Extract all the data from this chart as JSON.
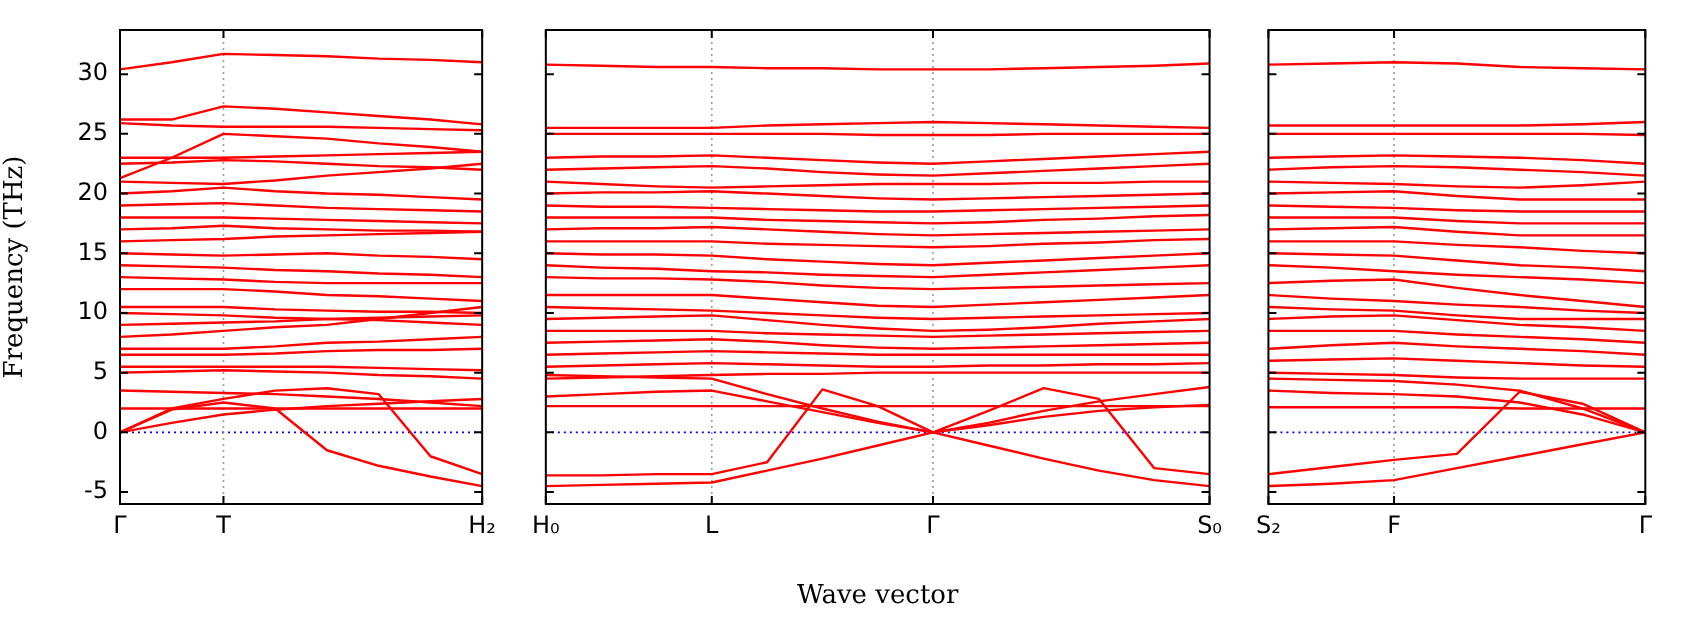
{
  "chart_data": [
    {
      "type": "line",
      "ylabel": "Frequency (THz)",
      "categories": [
        "Γ",
        null,
        "T",
        null,
        null,
        null,
        null,
        "H₂"
      ],
      "ylim": [
        -6,
        33.7
      ],
      "yticks": [
        -5,
        0,
        5,
        10,
        15,
        20,
        25,
        30
      ],
      "ref_lines": [
        {
          "axis": "y",
          "value": 0,
          "color": "#0000ff",
          "line_style": "dotted"
        },
        {
          "axis": "x",
          "value": "T",
          "color": "#999999",
          "line_style": "dotted"
        }
      ],
      "series": [
        {
          "color": "#ff0000",
          "values": [
            30.4,
            31.0,
            31.7,
            31.6,
            31.5,
            31.3,
            31.2,
            31.0
          ]
        },
        {
          "color": "#ff0000",
          "values": [
            26.2,
            26.2,
            27.3,
            27.1,
            26.8,
            26.5,
            26.2,
            25.8
          ]
        },
        {
          "color": "#ff0000",
          "values": [
            25.9,
            25.7,
            25.6,
            25.6,
            25.6,
            25.5,
            25.4,
            25.3
          ]
        },
        {
          "color": "#ff0000",
          "values": [
            21.3,
            23.0,
            25.0,
            24.8,
            24.6,
            24.2,
            23.9,
            23.5
          ]
        },
        {
          "color": "#ff0000",
          "values": [
            23,
            23,
            23,
            23.1,
            23.2,
            23.3,
            23.4,
            23.5
          ]
        },
        {
          "color": "#ff0000",
          "values": [
            22.5,
            22.6,
            22.8,
            22.7,
            22.5,
            22.3,
            22.2,
            22
          ]
        },
        {
          "color": "#ff0000",
          "values": [
            21,
            20.9,
            20.8,
            21.1,
            21.5,
            21.8,
            22.1,
            22.5
          ]
        },
        {
          "color": "#ff0000",
          "values": [
            20,
            20.2,
            20.5,
            20.2,
            20,
            19.9,
            19.7,
            19.5
          ]
        },
        {
          "color": "#ff0000",
          "values": [
            19,
            19.1,
            19.2,
            19,
            18.8,
            18.7,
            18.6,
            18.5
          ]
        },
        {
          "color": "#ff0000",
          "values": [
            18,
            18,
            18,
            17.9,
            17.8,
            17.7,
            17.6,
            17.5
          ]
        },
        {
          "color": "#ff0000",
          "values": [
            17,
            17.1,
            17.3,
            17.1,
            17,
            16.9,
            16.9,
            16.8
          ]
        },
        {
          "color": "#ff0000",
          "values": [
            16,
            16.1,
            16.2,
            16.4,
            16.5,
            16.6,
            16.7,
            16.8
          ]
        },
        {
          "color": "#ff0000",
          "values": [
            15,
            14.9,
            14.8,
            14.9,
            15,
            14.8,
            14.7,
            14.5
          ]
        },
        {
          "color": "#ff0000",
          "values": [
            14,
            13.9,
            13.8,
            13.6,
            13.5,
            13.3,
            13.2,
            13
          ]
        },
        {
          "color": "#ff0000",
          "values": [
            13,
            12.9,
            12.8,
            12.6,
            12.5,
            12.5,
            12.5,
            12.5
          ]
        },
        {
          "color": "#ff0000",
          "values": [
            12,
            12,
            12,
            11.8,
            11.5,
            11.4,
            11.2,
            11
          ]
        },
        {
          "color": "#ff0000",
          "values": [
            10.5,
            10.5,
            10.5,
            10.3,
            10.2,
            10.1,
            10.1,
            10
          ]
        },
        {
          "color": "#ff0000",
          "values": [
            10,
            9.9,
            9.8,
            9.6,
            9.5,
            9.4,
            9.2,
            9
          ]
        },
        {
          "color": "#ff0000",
          "values": [
            9,
            9.1,
            9.2,
            9.3,
            9.5,
            9.6,
            9.7,
            9.8
          ]
        },
        {
          "color": "#ff0000",
          "values": [
            8,
            8.2,
            8.5,
            8.8,
            9,
            9.5,
            10,
            10.5
          ]
        },
        {
          "color": "#ff0000",
          "values": [
            7,
            7,
            7,
            7.2,
            7.5,
            7.6,
            7.8,
            8
          ]
        },
        {
          "color": "#ff0000",
          "values": [
            6.5,
            6.5,
            6.5,
            6.6,
            6.8,
            6.9,
            6.9,
            7
          ]
        },
        {
          "color": "#ff0000",
          "values": [
            5.5,
            5.5,
            5.5,
            5.5,
            5.5,
            5.4,
            5.3,
            5.2
          ]
        },
        {
          "color": "#ff0000",
          "values": [
            5,
            5.1,
            5.2,
            5.1,
            5,
            4.8,
            4.7,
            4.5
          ]
        },
        {
          "color": "#ff0000",
          "values": [
            3.5,
            3.4,
            3.3,
            3.2,
            3.0,
            2.8,
            2.5,
            2.2
          ]
        },
        {
          "color": "#ff0000",
          "values": [
            2,
            2,
            2,
            2,
            2,
            2,
            2,
            2
          ]
        },
        {
          "color": "#ff0000",
          "values": [
            0,
            0.8,
            1.5,
            1.9,
            2.2,
            2.4,
            2.6,
            2.8
          ]
        },
        {
          "color": "#ff0000",
          "values": [
            0,
            1.9,
            2.5,
            2.0,
            -1.5,
            -2.8,
            -3.7,
            -4.5
          ]
        },
        {
          "color": "#ff0000",
          "values": [
            0,
            2.0,
            2.8,
            3.5,
            3.7,
            3.2,
            -2.0,
            -3.5
          ]
        }
      ]
    },
    {
      "type": "line",
      "xlabel": "Wave vector",
      "categories": [
        "H₀",
        null,
        null,
        "L",
        null,
        null,
        null,
        "Γ",
        null,
        null,
        null,
        null,
        "S₀"
      ],
      "ylim": [
        -6,
        33.7
      ],
      "yticks": [
        -5,
        0,
        5,
        10,
        15,
        20,
        25,
        30
      ],
      "tick_labels": "x",
      "ref_lines": [
        {
          "axis": "y",
          "value": 0,
          "color": "#0000ff",
          "line_style": "dotted"
        },
        {
          "axis": "x",
          "value": "L",
          "color": "#999999",
          "line_style": "dotted"
        },
        {
          "axis": "x",
          "value": "Γ",
          "color": "#999999",
          "line_style": "dotted"
        }
      ],
      "series": [
        {
          "color": "#ff0000",
          "values": [
            30.8,
            30.7,
            30.6,
            30.6,
            30.5,
            30.5,
            30.4,
            30.4,
            30.4,
            30.5,
            30.6,
            30.7,
            30.9
          ]
        },
        {
          "color": "#ff0000",
          "values": [
            25.5,
            25.5,
            25.5,
            25.5,
            25.7,
            25.8,
            25.9,
            26,
            25.9,
            25.8,
            25.7,
            25.6,
            25.5
          ]
        },
        {
          "color": "#ff0000",
          "values": [
            25,
            25,
            25,
            25,
            25,
            25,
            24.9,
            24.9,
            24.9,
            25,
            25,
            25,
            25
          ]
        },
        {
          "color": "#ff0000",
          "values": [
            23,
            23.1,
            23.1,
            23.2,
            23,
            22.8,
            22.6,
            22.5,
            22.7,
            22.9,
            23.1,
            23.3,
            23.5
          ]
        },
        {
          "color": "#ff0000",
          "values": [
            22,
            22.1,
            22.2,
            22.3,
            22.1,
            21.8,
            21.6,
            21.5,
            21.7,
            21.9,
            22.1,
            22.3,
            22.5
          ]
        },
        {
          "color": "#ff0000",
          "values": [
            21,
            20.8,
            20.6,
            20.5,
            20.6,
            20.7,
            20.8,
            20.8,
            20.8,
            20.9,
            20.9,
            21,
            21
          ]
        },
        {
          "color": "#ff0000",
          "values": [
            20,
            20.1,
            20.1,
            20.2,
            20,
            19.8,
            19.6,
            19.5,
            19.6,
            19.7,
            19.8,
            19.9,
            20
          ]
        },
        {
          "color": "#ff0000",
          "values": [
            19,
            18.9,
            18.9,
            18.8,
            18.7,
            18.6,
            18.5,
            18.5,
            18.6,
            18.7,
            18.8,
            18.9,
            19
          ]
        },
        {
          "color": "#ff0000",
          "values": [
            18,
            18,
            18,
            18,
            17.8,
            17.7,
            17.6,
            17.5,
            17.6,
            17.8,
            17.9,
            18.1,
            18.2
          ]
        },
        {
          "color": "#ff0000",
          "values": [
            17,
            17.1,
            17.1,
            17.2,
            17,
            16.8,
            16.6,
            16.5,
            16.6,
            16.7,
            16.8,
            16.9,
            17
          ]
        },
        {
          "color": "#ff0000",
          "values": [
            16,
            16,
            16,
            16,
            15.8,
            15.7,
            15.6,
            15.5,
            15.6,
            15.8,
            15.9,
            16.1,
            16.2
          ]
        },
        {
          "color": "#ff0000",
          "values": [
            15,
            14.9,
            14.9,
            14.8,
            14.5,
            14.3,
            14.1,
            14,
            14.2,
            14.4,
            14.6,
            14.8,
            15
          ]
        },
        {
          "color": "#ff0000",
          "values": [
            14,
            13.8,
            13.7,
            13.5,
            13.4,
            13.2,
            13.1,
            13,
            13.2,
            13.4,
            13.6,
            13.8,
            14
          ]
        },
        {
          "color": "#ff0000",
          "values": [
            13,
            12.9,
            12.9,
            12.8,
            12.6,
            12.3,
            12.1,
            12,
            12.1,
            12.2,
            12.3,
            12.4,
            12.5
          ]
        },
        {
          "color": "#ff0000",
          "values": [
            11.5,
            11.5,
            11.5,
            11.5,
            11.2,
            10.9,
            10.6,
            10.5,
            10.7,
            10.9,
            11.1,
            11.3,
            11.5
          ]
        },
        {
          "color": "#ff0000",
          "values": [
            10.5,
            10.4,
            10.3,
            10.2,
            10,
            9.8,
            9.6,
            9.5,
            9.6,
            9.7,
            9.8,
            9.9,
            10
          ]
        },
        {
          "color": "#ff0000",
          "values": [
            9.5,
            9.6,
            9.7,
            9.8,
            9.4,
            9,
            8.7,
            8.5,
            8.6,
            8.8,
            9.1,
            9.3,
            9.5
          ]
        },
        {
          "color": "#ff0000",
          "values": [
            8.5,
            8.5,
            8.5,
            8.5,
            8.3,
            8.2,
            8.1,
            8,
            8.1,
            8.2,
            8.3,
            8.4,
            8.5
          ]
        },
        {
          "color": "#ff0000",
          "values": [
            7.5,
            7.6,
            7.7,
            7.8,
            7.6,
            7.3,
            7.1,
            7,
            7.1,
            7.2,
            7.3,
            7.4,
            7.5
          ]
        },
        {
          "color": "#ff0000",
          "values": [
            6.5,
            6.6,
            6.7,
            6.8,
            6.7,
            6.6,
            6.5,
            6.5,
            6.5,
            6.5,
            6.5,
            6.5,
            6.5
          ]
        },
        {
          "color": "#ff0000",
          "values": [
            5.5,
            5.6,
            5.7,
            5.8,
            5.7,
            5.6,
            5.5,
            5.5,
            5.6,
            5.6,
            5.7,
            5.7,
            5.8
          ]
        },
        {
          "color": "#ff0000",
          "values": [
            4.5,
            4.6,
            4.7,
            4.8,
            4.9,
            4.9,
            5,
            5,
            5,
            5,
            5,
            5,
            5
          ]
        },
        {
          "color": "#ff0000",
          "values": [
            2.2,
            2.2,
            2.2,
            2.2,
            2.2,
            2.2,
            2.2,
            2.2,
            2.2,
            2.2,
            2.2,
            2.2,
            2.2
          ]
        },
        {
          "color": "#ff0000",
          "values": [
            4.8,
            4.7,
            4.6,
            4.5,
            3.2,
            2.0,
            0.9,
            0,
            0.8,
            1.8,
            2.6,
            3.2,
            3.8
          ]
        },
        {
          "color": "#ff0000",
          "values": [
            3,
            3.2,
            3.4,
            3.5,
            2.6,
            1.7,
            0.8,
            0,
            0.6,
            1.3,
            1.8,
            2.1,
            2.3
          ]
        },
        {
          "color": "#ff0000",
          "values": [
            -3.6,
            -3.6,
            -3.5,
            -3.5,
            -2.5,
            3.6,
            2.2,
            0,
            1.8,
            3.7,
            2.8,
            -3.0,
            -3.5
          ]
        },
        {
          "color": "#ff0000",
          "values": [
            -4.5,
            -4.4,
            -4.3,
            -4.2,
            -3.2,
            -2.2,
            -1.1,
            0,
            -1.1,
            -2.2,
            -3.2,
            -4.0,
            -4.5
          ]
        }
      ]
    },
    {
      "type": "line",
      "categories": [
        "S₂",
        null,
        "F",
        null,
        null,
        null,
        "Γ"
      ],
      "ylim": [
        -6,
        33.7
      ],
      "yticks": [
        -5,
        0,
        5,
        10,
        15,
        20,
        25,
        30
      ],
      "tick_labels": "x",
      "ref_lines": [
        {
          "axis": "y",
          "value": 0,
          "color": "#0000ff",
          "line_style": "dotted"
        },
        {
          "axis": "x",
          "value": "F",
          "color": "#999999",
          "line_style": "dotted"
        }
      ],
      "series": [
        {
          "color": "#ff0000",
          "values": [
            30.8,
            30.9,
            31,
            30.9,
            30.6,
            30.5,
            30.4
          ]
        },
        {
          "color": "#ff0000",
          "values": [
            25.7,
            25.7,
            25.7,
            25.7,
            25.7,
            25.8,
            26
          ]
        },
        {
          "color": "#ff0000",
          "values": [
            25,
            25,
            25,
            25,
            25,
            25,
            24.9
          ]
        },
        {
          "color": "#ff0000",
          "values": [
            23,
            23.1,
            23.2,
            23.1,
            23,
            22.8,
            22.5
          ]
        },
        {
          "color": "#ff0000",
          "values": [
            22,
            22.2,
            22.3,
            22.2,
            22,
            21.8,
            21.5
          ]
        },
        {
          "color": "#ff0000",
          "values": [
            21,
            20.9,
            20.8,
            20.6,
            20.5,
            20.7,
            21
          ]
        },
        {
          "color": "#ff0000",
          "values": [
            20,
            20.1,
            20.2,
            19.8,
            19.5,
            19.5,
            19.5
          ]
        },
        {
          "color": "#ff0000",
          "values": [
            19,
            18.9,
            18.8,
            18.6,
            18.5,
            18.5,
            18.5
          ]
        },
        {
          "color": "#ff0000",
          "values": [
            18,
            18,
            18,
            17.7,
            17.5,
            17.5,
            17.5
          ]
        },
        {
          "color": "#ff0000",
          "values": [
            17,
            17.1,
            17.2,
            16.8,
            16.5,
            16.5,
            16.5
          ]
        },
        {
          "color": "#ff0000",
          "values": [
            16,
            16,
            16,
            15.7,
            15.5,
            15.2,
            15
          ]
        },
        {
          "color": "#ff0000",
          "values": [
            15,
            14.9,
            14.8,
            14.4,
            14,
            13.8,
            13.5
          ]
        },
        {
          "color": "#ff0000",
          "values": [
            14,
            13.8,
            13.5,
            13.2,
            13,
            12.8,
            12.5
          ]
        },
        {
          "color": "#ff0000",
          "values": [
            12.5,
            12.7,
            12.8,
            12.1,
            11.5,
            11,
            10.5
          ]
        },
        {
          "color": "#ff0000",
          "values": [
            11.5,
            11.2,
            11,
            10.7,
            10.5,
            10.2,
            10
          ]
        },
        {
          "color": "#ff0000",
          "values": [
            10.5,
            10.3,
            10.2,
            9.8,
            9.5,
            9.5,
            9.5
          ]
        },
        {
          "color": "#ff0000",
          "values": [
            9.5,
            9.7,
            9.8,
            9.4,
            9,
            8.8,
            8.5
          ]
        },
        {
          "color": "#ff0000",
          "values": [
            8.5,
            8.5,
            8.5,
            8.2,
            8,
            7.8,
            7.5
          ]
        },
        {
          "color": "#ff0000",
          "values": [
            7,
            7.3,
            7.5,
            7.2,
            7,
            6.8,
            6.5
          ]
        },
        {
          "color": "#ff0000",
          "values": [
            6,
            6.1,
            6.2,
            6,
            5.8,
            5.6,
            5.5
          ]
        },
        {
          "color": "#ff0000",
          "values": [
            5,
            4.9,
            4.8,
            4.6,
            4.5,
            4.5,
            4.5
          ]
        },
        {
          "color": "#ff0000",
          "values": [
            4.5,
            4.4,
            4.3,
            4.0,
            3.5,
            2.0,
            0
          ]
        },
        {
          "color": "#ff0000",
          "values": [
            2.1,
            2.1,
            2.1,
            2.1,
            2.0,
            2.0,
            2.0
          ]
        },
        {
          "color": "#ff0000",
          "values": [
            3.5,
            3.3,
            3.2,
            3.0,
            2.5,
            1.5,
            0
          ]
        },
        {
          "color": "#ff0000",
          "values": [
            -3.5,
            -2.9,
            -2.3,
            -1.8,
            3.4,
            2.4,
            0
          ]
        },
        {
          "color": "#ff0000",
          "values": [
            -4.5,
            -4.3,
            -4.0,
            -3.0,
            -2.0,
            -1.0,
            0
          ]
        }
      ]
    }
  ]
}
